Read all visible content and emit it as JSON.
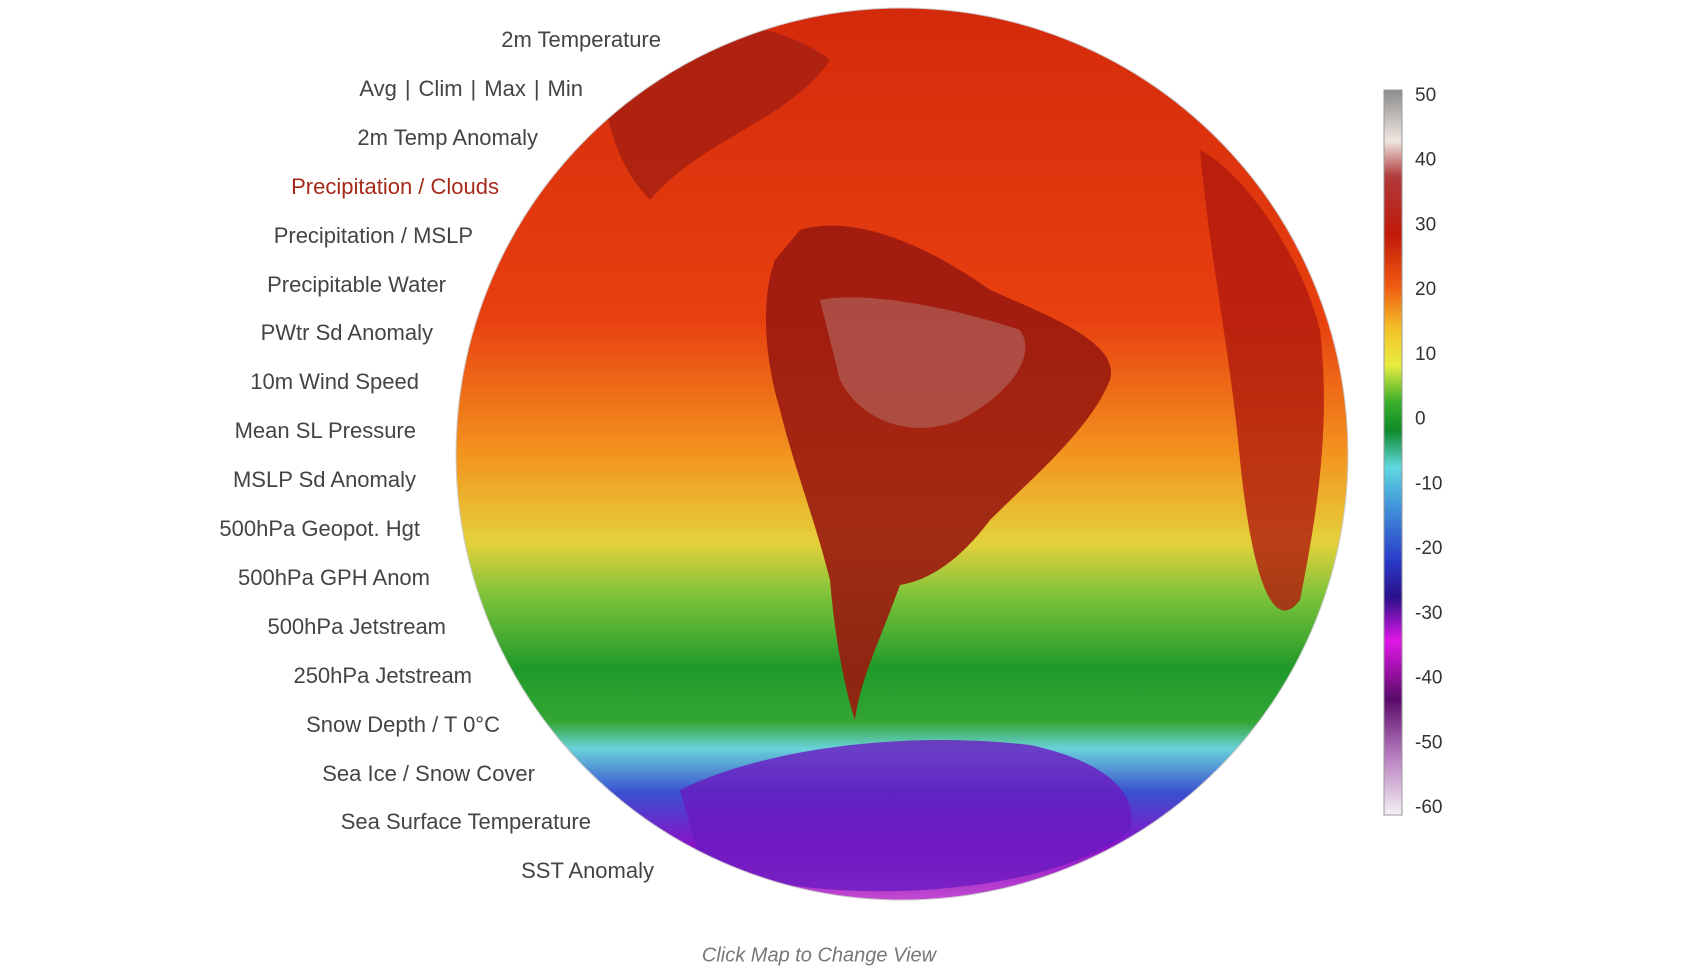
{
  "menu": {
    "items": [
      "2m Temperature",
      null,
      "2m Temp Anomaly",
      "Precipitation / Clouds",
      "Precipitation / MSLP",
      "Precipitable Water",
      "PWtr Sd Anomaly",
      "10m Wind Speed",
      "Mean SL Pressure",
      "MSLP Sd Anomaly",
      "500hPa Geopot. Hgt",
      "500hPa GPH Anom",
      "500hPa Jetstream",
      "250hPa Jetstream",
      "Snow Depth / T 0°C",
      "Sea Ice / Snow Cover",
      "Sea Surface Temperature",
      "SST Anomaly"
    ],
    "options": [
      "Avg",
      "Clim",
      "Max",
      "Min"
    ],
    "separator": "|",
    "active": 3
  },
  "colorbar": {
    "ticks": [
      50,
      40,
      30,
      20,
      10,
      0,
      -10,
      -20,
      -30,
      -40,
      -50,
      -60
    ]
  },
  "caption": "Click Map to Change View"
}
